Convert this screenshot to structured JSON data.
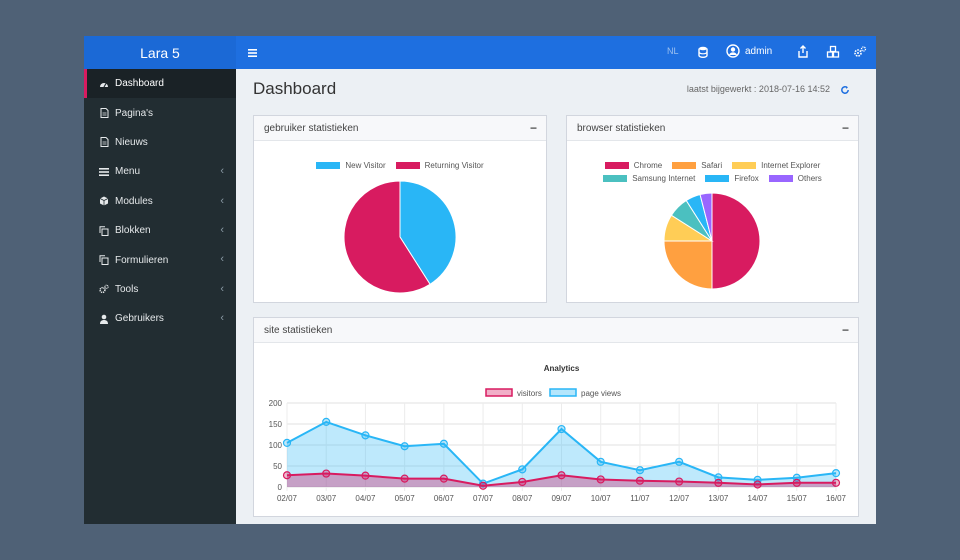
{
  "app": {
    "brand": "Lara 5"
  },
  "sidebar": {
    "items": [
      {
        "label": "Dashboard",
        "icon": "tachometer-icon",
        "active": true
      },
      {
        "label": "Pagina's",
        "icon": "file-icon"
      },
      {
        "label": "Nieuws",
        "icon": "file-icon"
      },
      {
        "label": "Menu",
        "icon": "list-icon",
        "chevron": "‹"
      },
      {
        "label": "Modules",
        "icon": "cube-icon",
        "chevron": "‹"
      },
      {
        "label": "Blokken",
        "icon": "copy-icon",
        "chevron": "‹"
      },
      {
        "label": "Formulieren",
        "icon": "copy-icon",
        "chevron": "‹"
      },
      {
        "label": "Tools",
        "icon": "cogs-icon",
        "chevron": "‹"
      },
      {
        "label": "Gebruikers",
        "icon": "user-icon",
        "chevron": "‹"
      }
    ]
  },
  "topbar": {
    "lang": "NL",
    "user": "admin"
  },
  "header": {
    "title": "Dashboard",
    "updated": "laatst bijgewerkt : 2018-07-16 14:52"
  },
  "boxes": {
    "users": {
      "title": "gebruiker statistieken",
      "collapse": "−"
    },
    "browsers": {
      "title": "browser statistieken",
      "collapse": "−"
    },
    "site": {
      "title": "site statistieken",
      "collapse": "−"
    }
  },
  "colors": {
    "brand": "#1b69d6",
    "topbar": "#1e6fe0",
    "sidebar": "#222d32",
    "accent": "#d81b60",
    "blue": "#29b6f6",
    "crimson": "#d81b60"
  },
  "chart_data": [
    {
      "type": "pie",
      "labels": [
        "New Visitor",
        "Returning Visitor"
      ],
      "values": [
        41,
        59
      ],
      "colors": [
        "#29b6f6",
        "#d81b60"
      ]
    },
    {
      "type": "pie",
      "labels": [
        "Chrome",
        "Safari",
        "Internet Explorer",
        "Samsung Internet",
        "Firefox",
        "Others"
      ],
      "values": [
        50,
        25,
        9,
        7,
        5,
        4
      ],
      "colors": [
        "#d81b60",
        "#ffa040",
        "#ffcd56",
        "#4bc0c0",
        "#29b6f6",
        "#9966ff"
      ]
    },
    {
      "type": "line",
      "title": "Analytics",
      "categories": [
        "02/07",
        "03/07",
        "04/07",
        "05/07",
        "06/07",
        "07/07",
        "08/07",
        "09/07",
        "10/07",
        "11/07",
        "12/07",
        "13/07",
        "14/07",
        "15/07",
        "16/07"
      ],
      "series": [
        {
          "name": "visitors",
          "values": [
            28,
            32,
            27,
            20,
            20,
            3,
            12,
            28,
            18,
            15,
            13,
            10,
            6,
            10,
            10
          ],
          "color": "#d81b60"
        },
        {
          "name": "page views",
          "values": [
            105,
            155,
            123,
            97,
            103,
            8,
            42,
            138,
            60,
            40,
            60,
            23,
            17,
            22,
            33
          ],
          "color": "#29b6f6"
        }
      ],
      "ylim": [
        0,
        200
      ],
      "yticks": [
        0,
        50,
        100,
        150,
        200
      ],
      "grid": true,
      "legend": "top"
    }
  ]
}
